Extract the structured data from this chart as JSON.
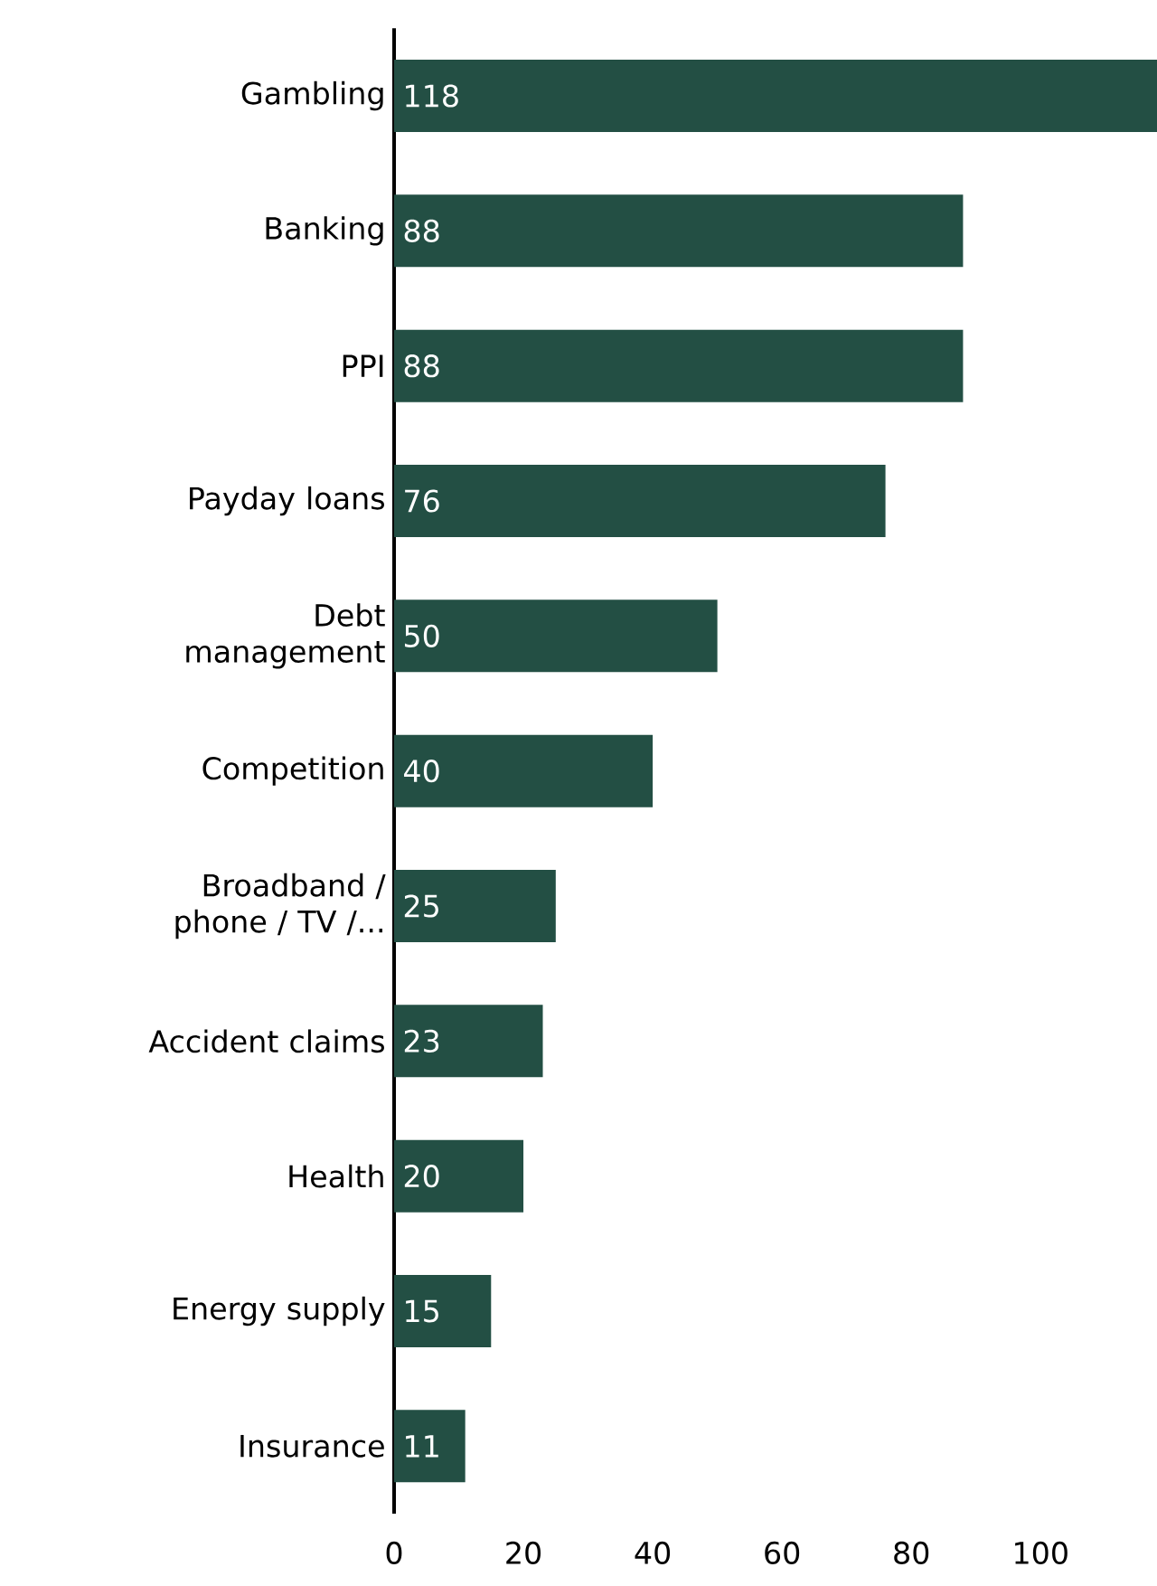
{
  "chart_data": {
    "type": "bar",
    "orientation": "horizontal",
    "categories": [
      "Gambling",
      "Banking",
      "PPI",
      "Payday loans",
      "Debt management",
      "Competition",
      "Broadband / phone / TV /...",
      "Accident claims",
      "Health",
      "Energy supply",
      "Insurance"
    ],
    "values": [
      118,
      88,
      88,
      76,
      50,
      40,
      25,
      23,
      20,
      15,
      11
    ],
    "color": "#234f44",
    "xlim": [
      0,
      118
    ],
    "xticks": [
      0,
      20,
      40,
      60,
      80,
      100
    ],
    "data_labels": true
  }
}
